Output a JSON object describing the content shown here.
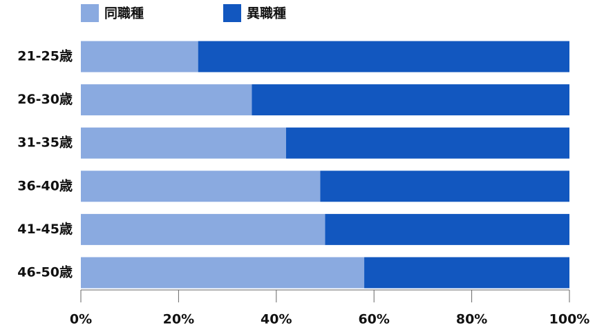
{
  "chart_data": {
    "type": "stacked-bar-horizontal",
    "categories": [
      "21-25歳",
      "26-30歳",
      "31-35歳",
      "36-40歳",
      "41-45歳",
      "46-50歳"
    ],
    "series": [
      {
        "name": "同職種",
        "color": "#8aaae0",
        "values": [
          24,
          35,
          42,
          49,
          50,
          58
        ]
      },
      {
        "name": "異職種",
        "color": "#1257bf",
        "values": [
          76,
          65,
          58,
          51,
          50,
          42
        ]
      }
    ],
    "xlim": [
      0,
      100
    ],
    "xticks": [
      {
        "value": 0,
        "label": "0%"
      },
      {
        "value": 20,
        "label": "20%"
      },
      {
        "value": 40,
        "label": "40%"
      },
      {
        "value": 60,
        "label": "60%"
      },
      {
        "value": 80,
        "label": "80%"
      },
      {
        "value": 100,
        "label": "100%"
      }
    ],
    "legend": "top"
  }
}
